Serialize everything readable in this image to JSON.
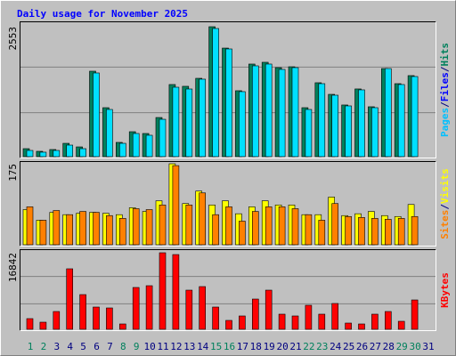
{
  "title": "Daily usage for November 2025",
  "chart_data": [
    {
      "type": "bar",
      "ylim": [
        0,
        2553
      ],
      "yticks": [
        2553
      ],
      "legend": [
        "Pages",
        "Files",
        "Hits"
      ],
      "legend_colors": [
        "#00c0ff",
        "#0000ff",
        "#00805c"
      ],
      "legend_separator": "/",
      "series": [
        {
          "color": "#00805c",
          "values": [
            157,
            105,
            140,
            262,
            192,
            1679,
            962,
            280,
            490,
            455,
            769,
            1417,
            1382,
            1539,
            2553,
            2133,
            1295,
            1819,
            1854,
            1749,
            1766,
            962,
            1452,
            1224,
            1015,
            1330,
            980,
            1731,
            1434,
            1592,
            null
          ]
        },
        {
          "color": "#00e0ff",
          "values": [
            122,
            88,
            122,
            227,
            157,
            1644,
            927,
            262,
            455,
            420,
            734,
            1364,
            1329,
            1522,
            2518,
            2116,
            1277,
            1784,
            1819,
            1714,
            1749,
            927,
            1434,
            1207,
            997,
            1312,
            962,
            1731,
            1417,
            1574,
            null
          ]
        }
      ]
    },
    {
      "type": "bar",
      "ylim": [
        0,
        175
      ],
      "yticks": [
        175
      ],
      "legend": [
        "Sites",
        "Visits"
      ],
      "legend_colors": [
        "#ff8000",
        "#ffff00"
      ],
      "legend_separator": "/",
      "series": [
        {
          "color": "#ffff00",
          "values": [
            76,
            53,
            70,
            65,
            68,
            70,
            68,
            65,
            80,
            72,
            95,
            175,
            89,
            116,
            86,
            95,
            67,
            82,
            95,
            86,
            86,
            65,
            65,
            103,
            63,
            67,
            72,
            63,
            61,
            87,
            null
          ]
        },
        {
          "color": "#ff8000",
          "values": [
            82,
            53,
            74,
            65,
            72,
            70,
            63,
            57,
            78,
            76,
            86,
            171,
            86,
            112,
            65,
            82,
            51,
            72,
            82,
            82,
            78,
            65,
            53,
            89,
            61,
            59,
            57,
            55,
            57,
            61,
            null
          ]
        }
      ]
    },
    {
      "type": "bar",
      "ylim": [
        0,
        16842
      ],
      "yticks": [
        16842
      ],
      "legend": [
        "KBytes"
      ],
      "legend_colors": [
        "#ff0000"
      ],
      "legend_separator": "/",
      "categories": [
        1,
        2,
        3,
        4,
        5,
        6,
        7,
        8,
        9,
        10,
        11,
        12,
        13,
        14,
        15,
        16,
        17,
        18,
        19,
        20,
        21,
        22,
        23,
        24,
        25,
        26,
        27,
        28,
        29,
        30,
        31
      ],
      "category_colors": [
        "#00805c",
        "#00805c",
        "#000080",
        "#000080",
        "#000080",
        "#000080",
        "#000080",
        "#00805c",
        "#00805c",
        "#000080",
        "#000080",
        "#000080",
        "#000080",
        "#000080",
        "#00805c",
        "#00805c",
        "#000080",
        "#000080",
        "#000080",
        "#000080",
        "#000080",
        "#00805c",
        "#00805c",
        "#000080",
        "#000080",
        "#000080",
        "#000080",
        "#000080",
        "#00805c",
        "#00805c",
        "#000080"
      ],
      "series": [
        {
          "color": "#ff0000",
          "values": [
            2350,
            1566,
            3916,
            13315,
            7636,
            4895,
            4699,
            1175,
            9203,
            9594,
            16842,
            16447,
            8615,
            9398,
            4895,
            1958,
            2937,
            6657,
            8615,
            3329,
            2937,
            5287,
            3329,
            5678,
            1371,
            1175,
            3329,
            3916,
            1762,
            6461,
            null
          ]
        }
      ]
    }
  ]
}
